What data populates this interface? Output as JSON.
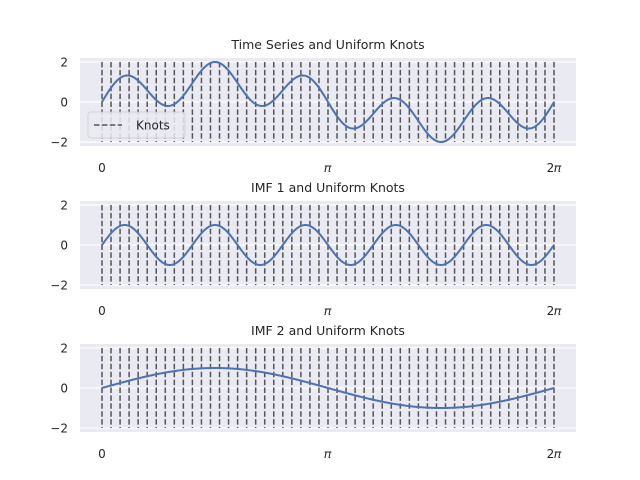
{
  "chart_data": [
    {
      "type": "line",
      "title": "Time Series and Uniform Knots",
      "xlabel": "",
      "ylabel": "",
      "xlim": [
        0,
        6.283185
      ],
      "ylim": [
        -2.2,
        2.2
      ],
      "grid": true,
      "xticks": [
        {
          "value": 0,
          "label": "0"
        },
        {
          "value": 3.141593,
          "label": "π"
        },
        {
          "value": 6.283185,
          "label": "2π"
        }
      ],
      "yticks": [
        {
          "value": 2,
          "label": "2"
        },
        {
          "value": 0,
          "label": "0"
        },
        {
          "value": -2,
          "label": "−2"
        }
      ],
      "series": [
        {
          "name": "",
          "color": "#4c72b0",
          "function": "sin(5x) + sin(x)",
          "samples": 401,
          "x_range": [
            0,
            6.283185
          ]
        }
      ],
      "knots": {
        "name": "Knots",
        "count": 51,
        "x_range": [
          0,
          6.283185
        ],
        "color": "#555555",
        "style": "dashed"
      },
      "legend": {
        "position": "lower-left",
        "entries": [
          "Knots"
        ]
      }
    },
    {
      "type": "line",
      "title": "IMF 1 and Uniform Knots",
      "xlabel": "",
      "ylabel": "",
      "xlim": [
        0,
        6.283185
      ],
      "ylim": [
        -2.2,
        2.2
      ],
      "grid": true,
      "xticks": [
        {
          "value": 0,
          "label": "0"
        },
        {
          "value": 3.141593,
          "label": "π"
        },
        {
          "value": 6.283185,
          "label": "2π"
        }
      ],
      "yticks": [
        {
          "value": 2,
          "label": "2"
        },
        {
          "value": 0,
          "label": "0"
        },
        {
          "value": -2,
          "label": "−2"
        }
      ],
      "series": [
        {
          "name": "",
          "color": "#4c72b0",
          "function": "sin(5x)",
          "samples": 401,
          "x_range": [
            0,
            6.283185
          ]
        }
      ],
      "knots": {
        "name": "Knots",
        "count": 51,
        "x_range": [
          0,
          6.283185
        ],
        "color": "#555555",
        "style": "dashed"
      }
    },
    {
      "type": "line",
      "title": "IMF 2 and Uniform Knots",
      "xlabel": "",
      "ylabel": "",
      "xlim": [
        0,
        6.283185
      ],
      "ylim": [
        -2.2,
        2.2
      ],
      "grid": true,
      "xticks": [
        {
          "value": 0,
          "label": "0"
        },
        {
          "value": 3.141593,
          "label": "π"
        },
        {
          "value": 6.283185,
          "label": "2π"
        }
      ],
      "yticks": [
        {
          "value": 2,
          "label": "2"
        },
        {
          "value": 0,
          "label": "0"
        },
        {
          "value": -2,
          "label": "−2"
        }
      ],
      "series": [
        {
          "name": "",
          "color": "#4c72b0",
          "function": "sin(x)",
          "samples": 401,
          "x_range": [
            0,
            6.283185
          ]
        }
      ],
      "knots": {
        "name": "Knots",
        "count": 51,
        "x_range": [
          0,
          6.283185
        ],
        "color": "#555555",
        "style": "dashed"
      }
    }
  ],
  "colors": {
    "axes_background": "#eaeaf2",
    "grid": "#ffffff",
    "line": "#4c72b0",
    "knot": "#555555"
  }
}
